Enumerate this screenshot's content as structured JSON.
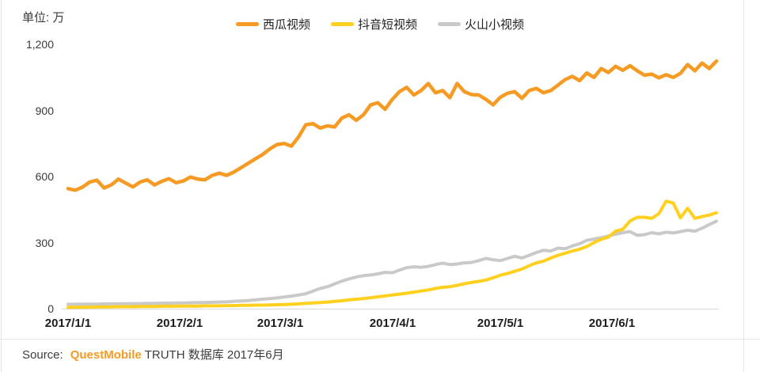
{
  "unit_label": "单位: 万",
  "source": {
    "prefix": "Source:",
    "brand": "QuestMobile",
    "suffix": "TRUTH 数据库 2017年6月",
    "brand_color": "#F59A23"
  },
  "chart_data": {
    "type": "line",
    "title": "",
    "xlabel": "",
    "ylabel": "单位: 万",
    "ylim": [
      0,
      1200
    ],
    "grid": false,
    "legend_position": "top",
    "y_ticks": [
      0,
      300,
      600,
      900,
      1200
    ],
    "y_tick_labels": [
      "0",
      "300",
      "600",
      "900",
      "1,200"
    ],
    "x_tick_labels": [
      "2017/1/1",
      "2017/2/1",
      "2017/3/1",
      "2017/4/1",
      "2017/5/1",
      "2017/6/1"
    ],
    "month_tick_days": [
      0,
      31,
      59,
      90,
      120,
      151
    ],
    "x_day_step": 2,
    "x_total_days": 180,
    "series": [
      {
        "name": "西瓜视频",
        "color": "#F59A23",
        "stroke_width": 4.5,
        "values": [
          545,
          538,
          552,
          575,
          583,
          548,
          562,
          588,
          570,
          553,
          575,
          585,
          562,
          578,
          590,
          572,
          580,
          598,
          588,
          585,
          605,
          615,
          605,
          620,
          640,
          660,
          680,
          700,
          725,
          745,
          750,
          738,
          780,
          835,
          840,
          820,
          830,
          825,
          865,
          880,
          855,
          880,
          925,
          935,
          905,
          950,
          985,
          1005,
          970,
          990,
          1022,
          980,
          990,
          958,
          1022,
          985,
          972,
          970,
          950,
          925,
          960,
          978,
          985,
          955,
          990,
          1000,
          980,
          990,
          1015,
          1040,
          1055,
          1035,
          1070,
          1050,
          1090,
          1072,
          1100,
          1082,
          1103,
          1080,
          1060,
          1065,
          1048,
          1062,
          1050,
          1068,
          1108,
          1080,
          1115,
          1090,
          1124
        ]
      },
      {
        "name": "抖音短视频",
        "color": "#FFD01E",
        "stroke_width": 4,
        "values": [
          6,
          6,
          7,
          7,
          8,
          8,
          8,
          9,
          9,
          9,
          10,
          10,
          10,
          11,
          11,
          11,
          12,
          12,
          12,
          13,
          13,
          13,
          14,
          14,
          15,
          15,
          16,
          16,
          17,
          18,
          19,
          20,
          22,
          24,
          26,
          28,
          30,
          33,
          36,
          40,
          43,
          46,
          50,
          54,
          58,
          62,
          66,
          70,
          75,
          80,
          85,
          92,
          97,
          100,
          106,
          113,
          119,
          124,
          130,
          140,
          152,
          160,
          170,
          180,
          195,
          208,
          216,
          230,
          242,
          252,
          262,
          270,
          282,
          300,
          315,
          325,
          352,
          360,
          398,
          415,
          415,
          410,
          431,
          488,
          480,
          412,
          456,
          410,
          418,
          425,
          435
        ]
      },
      {
        "name": "火山小视频",
        "color": "#C9C9C9",
        "stroke_width": 4,
        "values": [
          20,
          20,
          21,
          21,
          21,
          22,
          22,
          22,
          23,
          23,
          23,
          24,
          24,
          25,
          25,
          26,
          26,
          27,
          28,
          28,
          29,
          30,
          31,
          33,
          35,
          37,
          40,
          43,
          46,
          49,
          53,
          57,
          62,
          68,
          80,
          92,
          100,
          112,
          125,
          135,
          144,
          150,
          153,
          158,
          165,
          163,
          175,
          186,
          190,
          188,
          192,
          200,
          207,
          200,
          203,
          208,
          210,
          218,
          228,
          222,
          218,
          228,
          238,
          230,
          242,
          255,
          265,
          262,
          275,
          272,
          285,
          295,
          310,
          316,
          322,
          330,
          338,
          345,
          350,
          333,
          336,
          345,
          340,
          347,
          344,
          350,
          356,
          352,
          365,
          382,
          397
        ]
      }
    ]
  }
}
